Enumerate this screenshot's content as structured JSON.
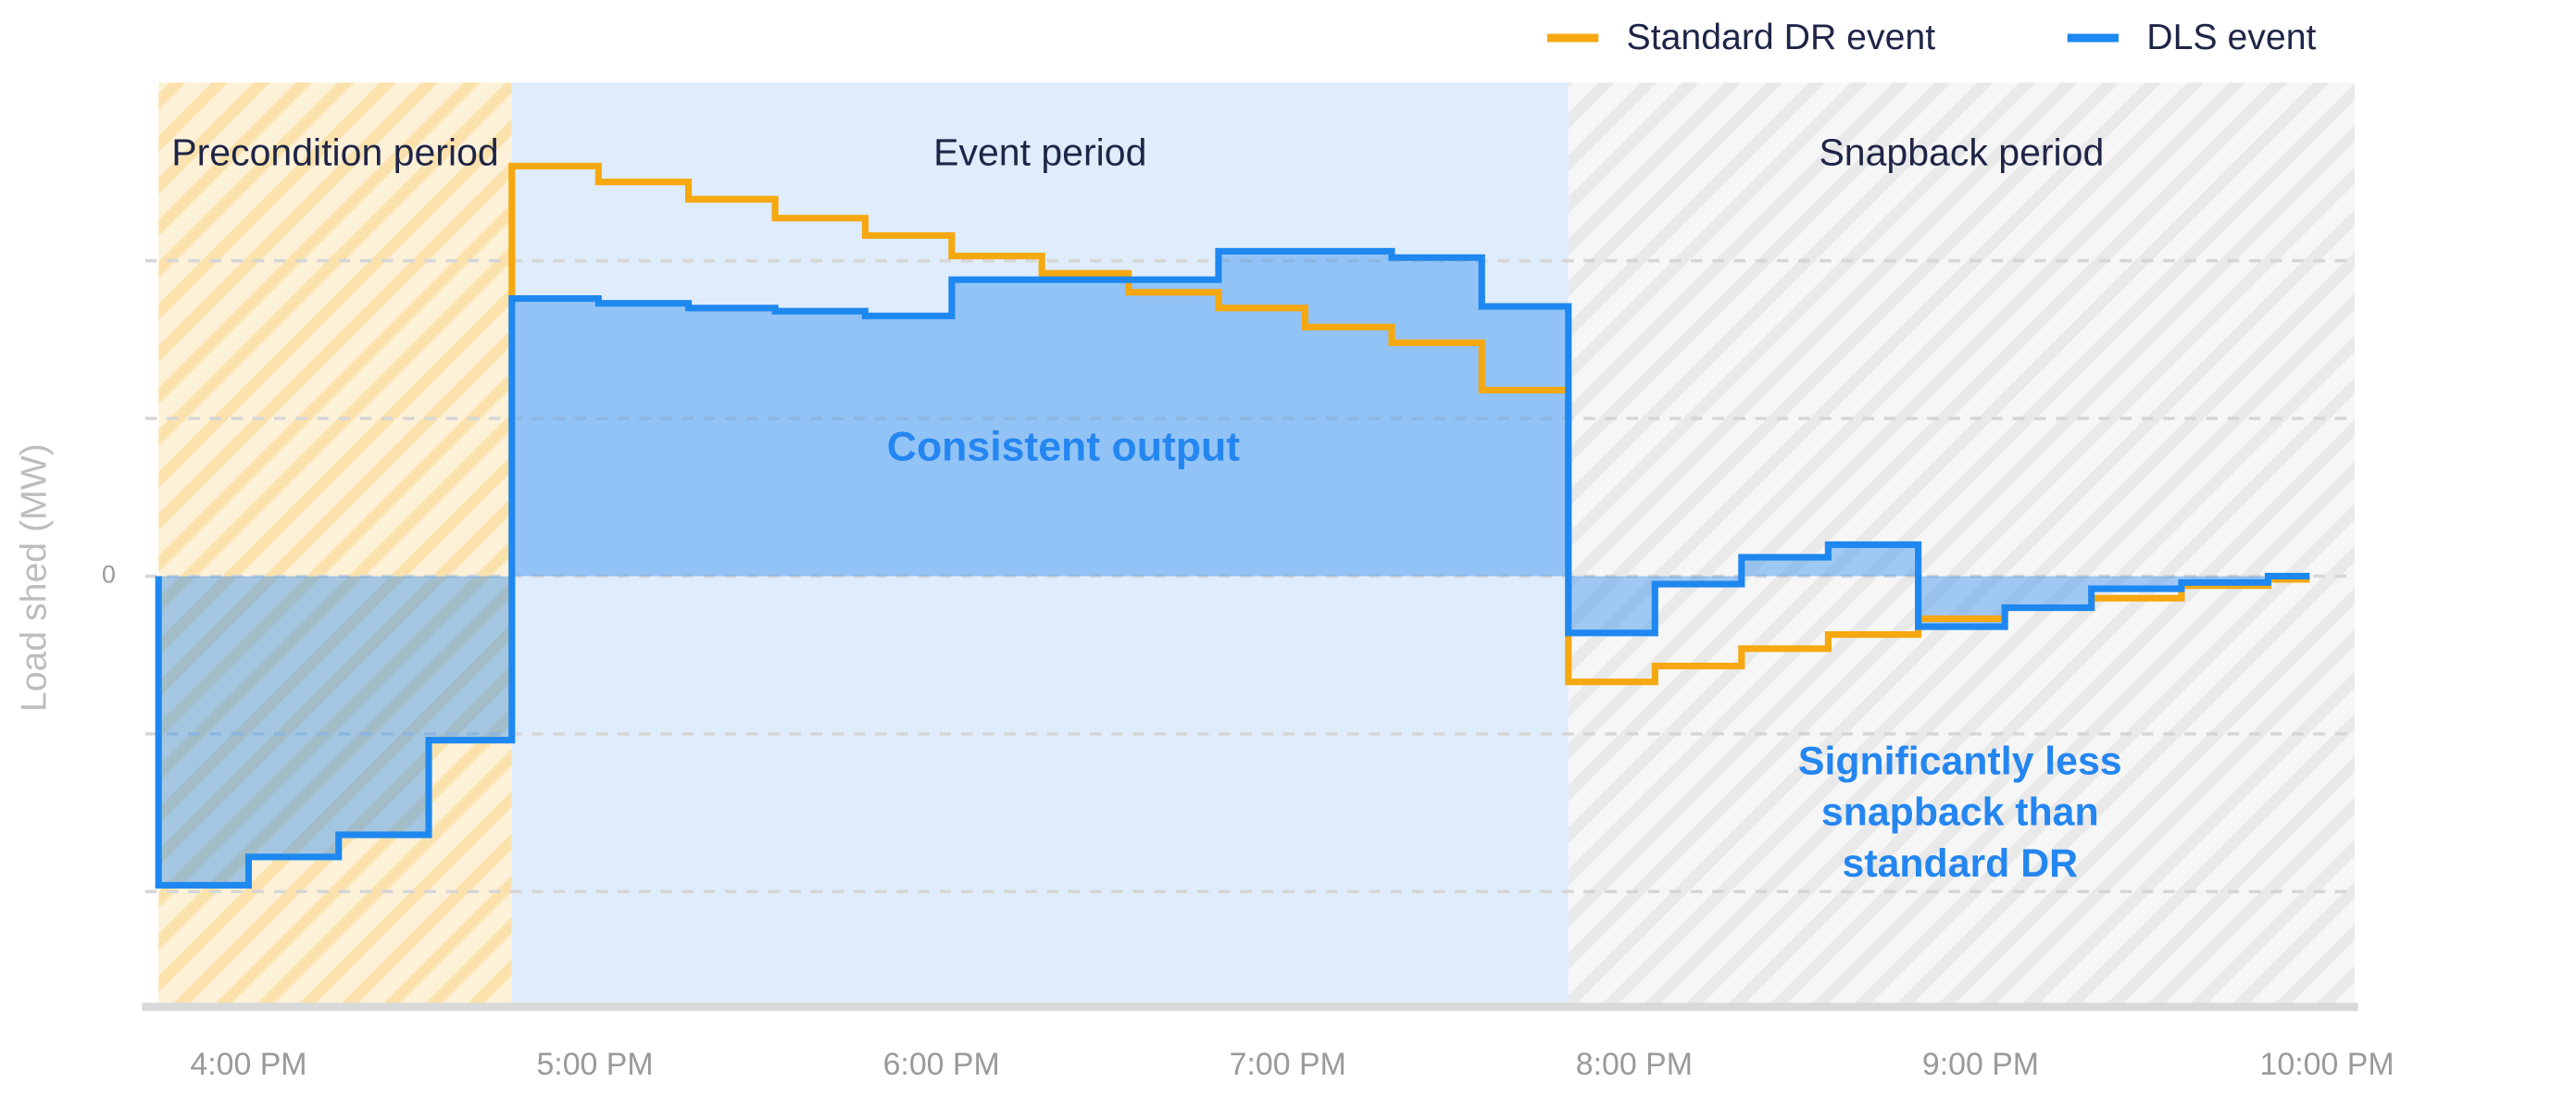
{
  "chart_data": {
    "type": "step",
    "ylabel": "Load shed (MW)",
    "xlim": [
      15.74,
      22.08
    ],
    "ylim": [
      -2.71,
      3.13
    ],
    "xticks": [
      {
        "value": 16,
        "label": "4:00 PM"
      },
      {
        "value": 17,
        "label": "5:00 PM"
      },
      {
        "value": 18,
        "label": "6:00 PM"
      },
      {
        "value": 19,
        "label": "7:00 PM"
      },
      {
        "value": 20,
        "label": "8:00 PM"
      },
      {
        "value": 21,
        "label": "9:00 PM"
      },
      {
        "value": 22,
        "label": "10:00 PM"
      }
    ],
    "yticks": [
      0
    ],
    "grid": [
      -2,
      -1,
      0,
      1,
      2
    ],
    "regions": [
      {
        "label": "Precondition period",
        "start": 15.74,
        "end": 16.76,
        "color": "#fdf1d8",
        "hatch": "#fbe2ad"
      },
      {
        "label": "Event period",
        "start": 16.76,
        "end": 19.81,
        "color": "#dfecfb"
      },
      {
        "label": "Snapback period",
        "start": 19.81,
        "end": 22.08,
        "color": "#f6f6f6",
        "hatch": "#e9e9e9"
      }
    ],
    "series": [
      {
        "name": "Standard DR event",
        "color": "#f5a80f",
        "area": false,
        "x": [
          16.76,
          16.76,
          17.01,
          17.27,
          17.52,
          17.78,
          18.03,
          18.29,
          18.54,
          18.8,
          19.05,
          19.3,
          19.56,
          19.81,
          20.06,
          20.31,
          20.56,
          20.82,
          21.07,
          21.32,
          21.58,
          21.83,
          21.95
        ],
        "values": [
          -0.87,
          2.6,
          2.5,
          2.39,
          2.27,
          2.16,
          2.03,
          1.92,
          1.8,
          1.7,
          1.58,
          1.48,
          1.18,
          -0.67,
          -0.57,
          -0.46,
          -0.37,
          -0.27,
          -0.2,
          -0.14,
          -0.06,
          -0.02,
          -0.02
        ]
      },
      {
        "name": "DLS event",
        "color": "#1e88f0",
        "area": true,
        "x": [
          15.74,
          15.74,
          16.0,
          16.26,
          16.52,
          16.76,
          17.01,
          17.27,
          17.52,
          17.78,
          18.03,
          18.29,
          18.54,
          18.8,
          19.05,
          19.3,
          19.56,
          19.81,
          20.06,
          20.31,
          20.56,
          20.82,
          21.07,
          21.32,
          21.58,
          21.83,
          21.95
        ],
        "values": [
          0,
          -1.96,
          -1.78,
          -1.64,
          -1.04,
          1.76,
          1.73,
          1.7,
          1.68,
          1.65,
          1.88,
          1.88,
          1.88,
          2.06,
          2.06,
          2.02,
          1.71,
          -0.36,
          -0.05,
          0.12,
          0.2,
          -0.32,
          -0.2,
          -0.08,
          -0.04,
          0.0,
          0.0
        ]
      }
    ],
    "annotations": [
      {
        "text": "Consistent output"
      },
      {
        "text": "Significantly less snapback than standard DR"
      }
    ]
  }
}
